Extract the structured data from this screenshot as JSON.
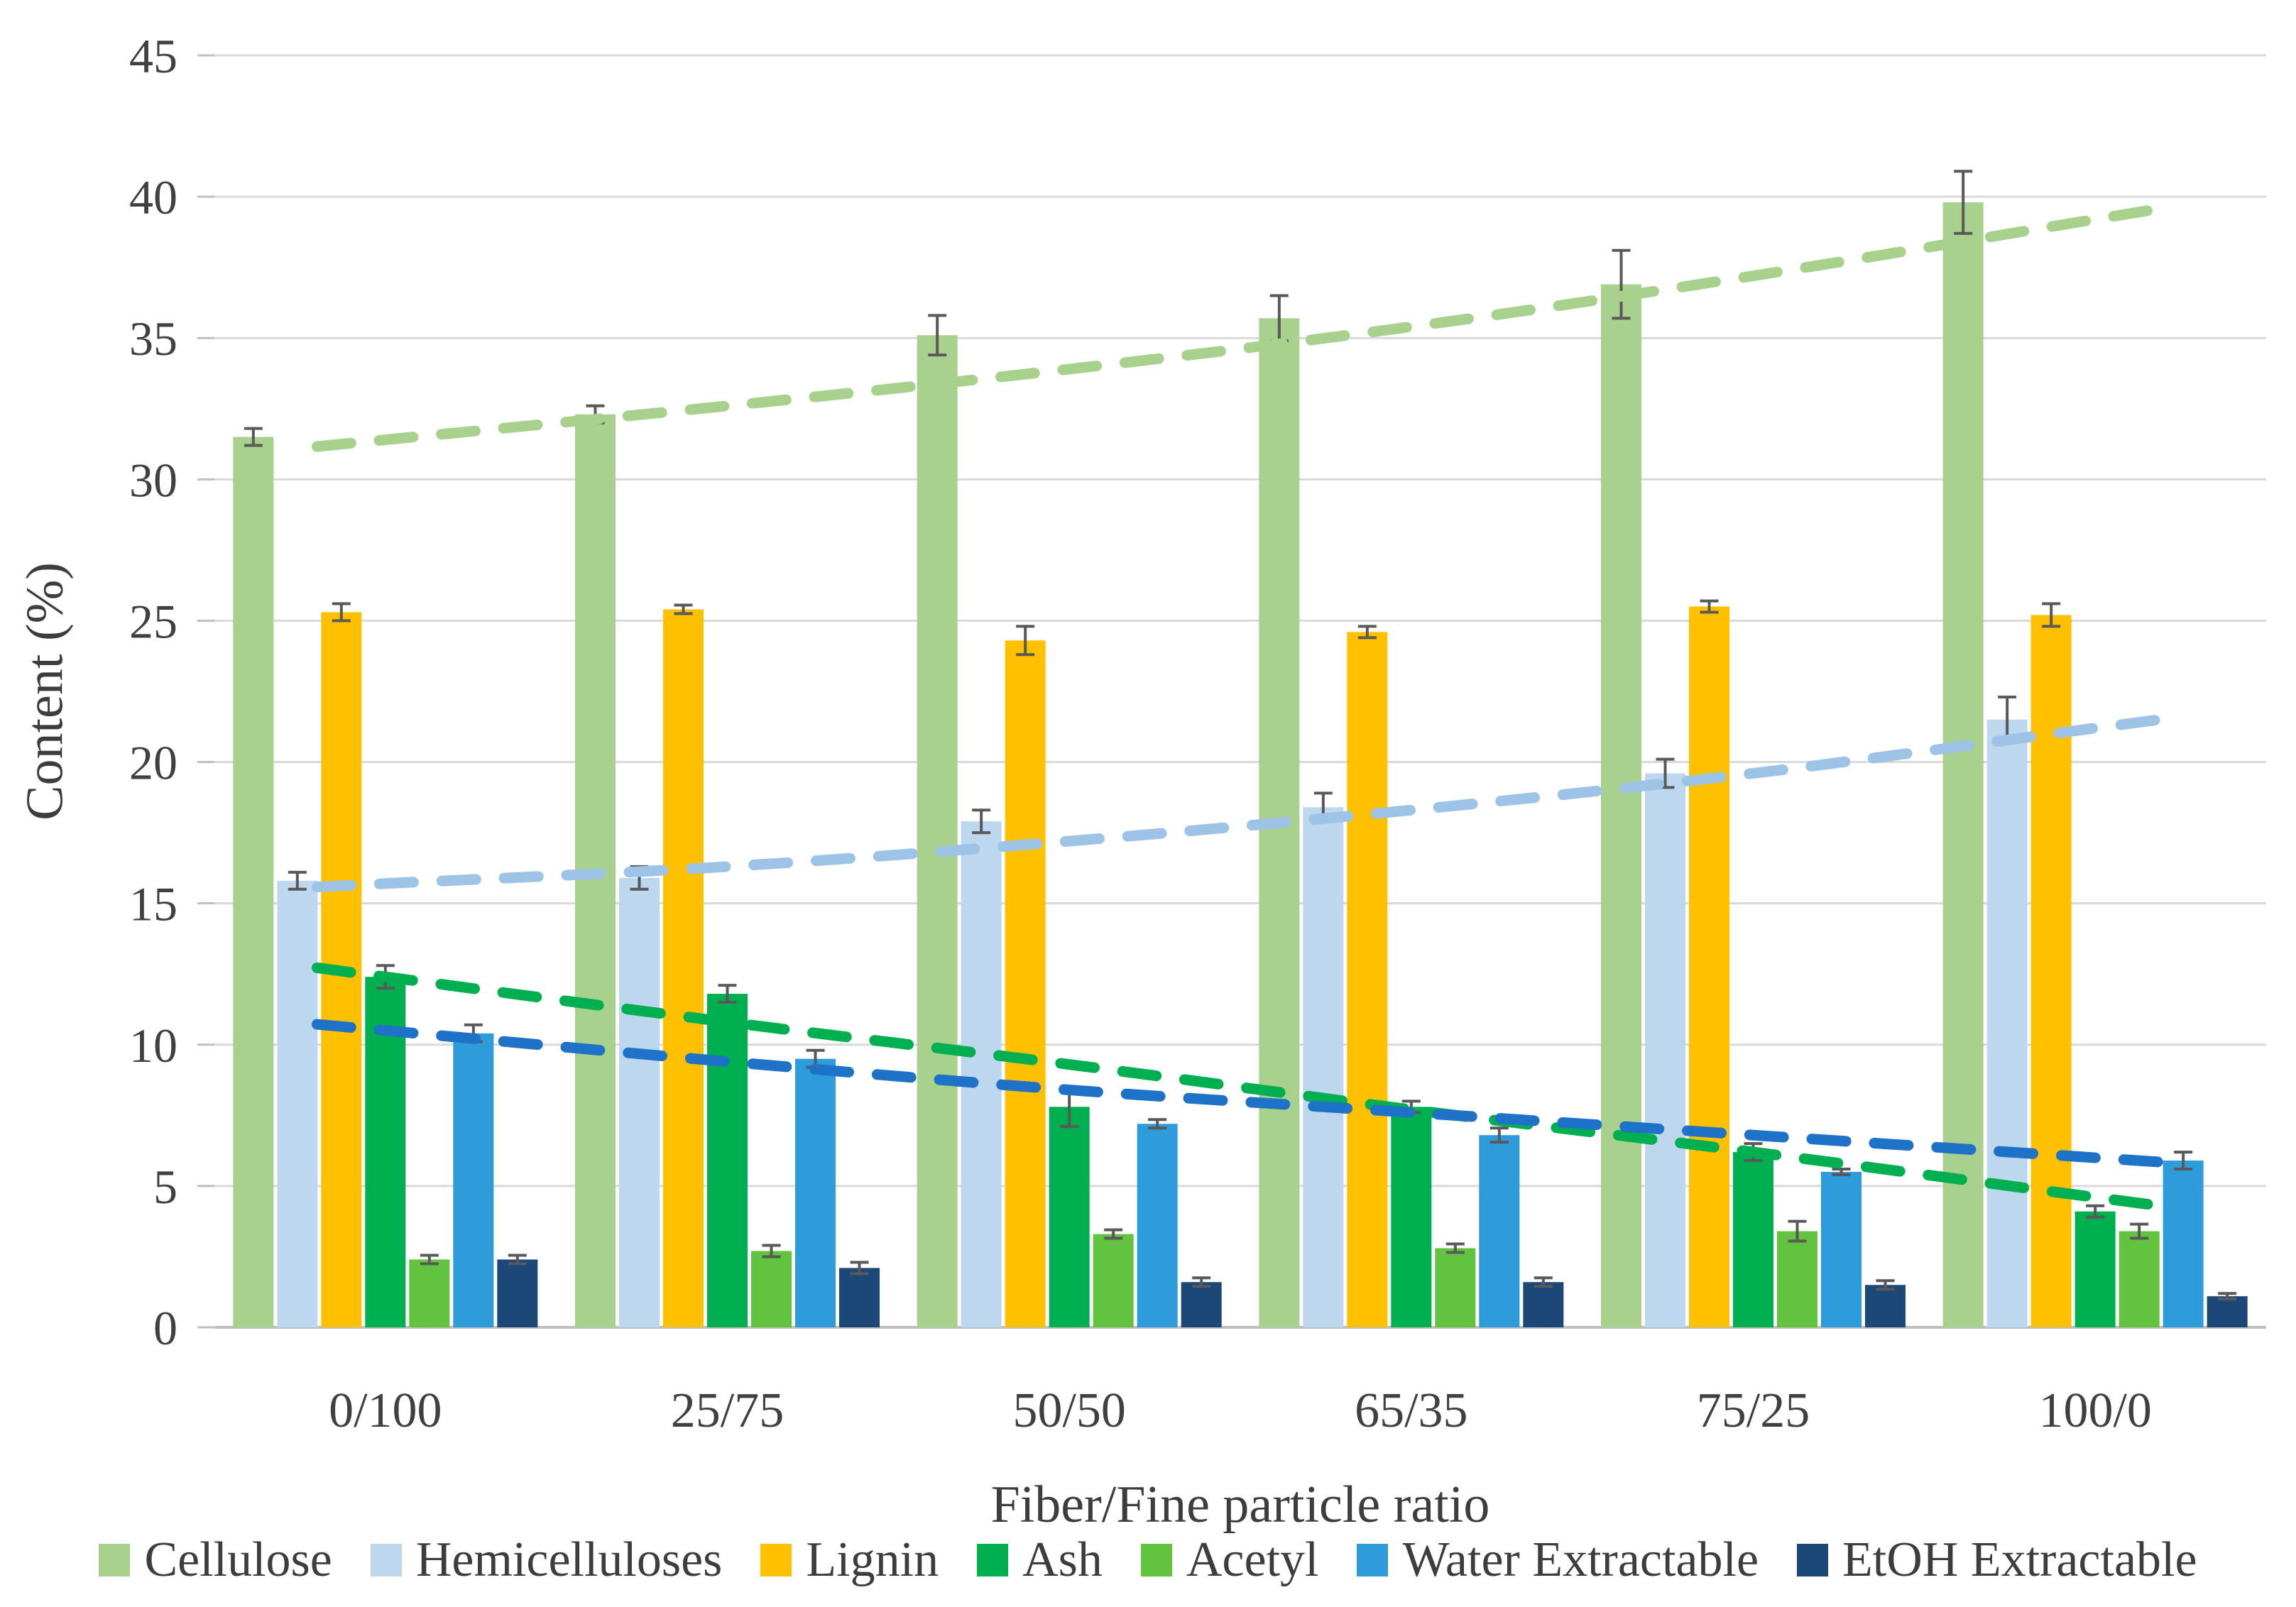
{
  "chart_data": {
    "type": "bar",
    "title": "",
    "xlabel": "Fiber/Fine particle ratio",
    "ylabel": "Content (%)",
    "ylim": [
      0,
      45
    ],
    "ytick_step": 5,
    "yticks": [
      "45",
      "40",
      "35",
      "30",
      "25",
      "20",
      "15",
      "10",
      "5",
      "0"
    ],
    "grid": true,
    "legend_position": "bottom",
    "error_bar_color": "#595959",
    "gridline_color": "#D9D9D9",
    "axis_line_color": "#BFBFBF",
    "text_color": "#404040",
    "categories": [
      "0/100",
      "25/75",
      "50/50",
      "65/35",
      "75/25",
      "100/0"
    ],
    "series": [
      {
        "name": "Cellulose",
        "color": "#A9D18E",
        "values": [
          31.5,
          32.3,
          35.1,
          35.7,
          36.9,
          39.8
        ],
        "errors": [
          0.3,
          0.3,
          0.7,
          0.8,
          1.2,
          1.1
        ]
      },
      {
        "name": "Hemicelluloses",
        "color": "#BDD7EE",
        "values": [
          15.8,
          15.9,
          17.9,
          18.4,
          19.6,
          21.5
        ],
        "errors": [
          0.3,
          0.4,
          0.4,
          0.5,
          0.5,
          0.8
        ]
      },
      {
        "name": "Lignin",
        "color": "#FFC000",
        "values": [
          25.3,
          25.4,
          24.3,
          24.6,
          25.5,
          25.2
        ],
        "errors": [
          0.3,
          0.15,
          0.5,
          0.2,
          0.2,
          0.4
        ]
      },
      {
        "name": "Ash",
        "color": "#00B050",
        "values": [
          12.4,
          11.8,
          7.8,
          7.8,
          6.2,
          4.1
        ],
        "errors": [
          0.4,
          0.3,
          0.7,
          0.2,
          0.3,
          0.2
        ]
      },
      {
        "name": "Acetyl",
        "color": "#62C33E",
        "values": [
          2.4,
          2.7,
          3.3,
          2.8,
          3.4,
          3.4
        ],
        "errors": [
          0.15,
          0.2,
          0.15,
          0.15,
          0.35,
          0.25
        ]
      },
      {
        "name": "Water Extractable",
        "color": "#2E9BDB",
        "values": [
          10.4,
          9.5,
          7.2,
          6.8,
          5.5,
          5.9
        ],
        "errors": [
          0.3,
          0.3,
          0.15,
          0.25,
          0.1,
          0.3
        ]
      },
      {
        "name": "EtOH Extractable",
        "color": "#1B4879",
        "values": [
          2.4,
          2.1,
          1.6,
          1.6,
          1.5,
          1.1
        ],
        "errors": [
          0.15,
          0.2,
          0.15,
          0.15,
          0.15,
          0.1
        ]
      }
    ],
    "trendlines": [
      {
        "series": "Cellulose",
        "color": "#A9D18E",
        "style": "dashed",
        "values": [
          31.4,
          32.6,
          33.9,
          35.4,
          37.2,
          39.2
        ]
      },
      {
        "series": "Hemicelluloses",
        "color": "#9DC3E6",
        "style": "dashed",
        "values": [
          15.7,
          16.3,
          17.2,
          18.3,
          19.6,
          21.2
        ]
      },
      {
        "series": "Ash",
        "color": "#00B050",
        "style": "dashed",
        "values": [
          12.4,
          10.8,
          9.3,
          7.7,
          6.2,
          4.6
        ]
      },
      {
        "series": "Water Extractable",
        "color": "#1E73C8",
        "style": "dashed",
        "values": [
          10.5,
          9.4,
          8.4,
          7.6,
          6.8,
          6.0
        ]
      }
    ]
  }
}
